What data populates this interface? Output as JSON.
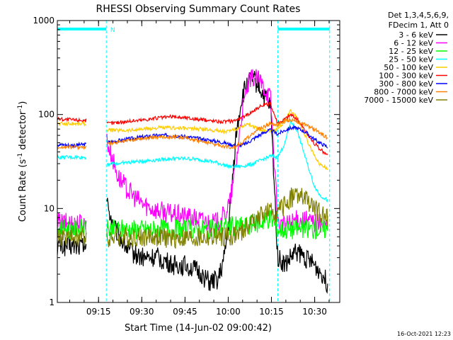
{
  "chart_data": {
    "type": "line",
    "title": "RHESSI Observing Summary Count Rates",
    "xlabel": "Start Time (14-Jun-02 09:00:42)",
    "ylabel_main": "Count Rate (s",
    "ylabel_sup1": "-1",
    "ylabel_mid": " detector",
    "ylabel_sup2": "-1",
    "ylabel_end": ")",
    "y_scale": "log",
    "ylim": [
      1,
      1000
    ],
    "xlim_minutes": [
      0,
      98
    ],
    "x_ticks": [
      {
        "label": "09:15",
        "minute": 14.3
      },
      {
        "label": "09:30",
        "minute": 29.3
      },
      {
        "label": "09:45",
        "minute": 44.3
      },
      {
        "label": "10:00",
        "minute": 59.3
      },
      {
        "label": "10:15",
        "minute": 74.3
      },
      {
        "label": "10:30",
        "minute": 89.3
      }
    ],
    "y_ticks": [
      {
        "label": "1",
        "value": 1
      },
      {
        "label": "10",
        "value": 10
      },
      {
        "label": "100",
        "value": 100
      },
      {
        "label": "1000",
        "value": 1000
      }
    ],
    "legend_header": [
      "Det 1,3,4,5,6,9,",
      "FDecim 1, Att 0"
    ],
    "legend_position": "right",
    "night_marker": "N",
    "timestamp": "16-Oct-2021 12:23",
    "night_intervals": [
      [
        0,
        17
      ],
      [
        76.5,
        94.5
      ]
    ],
    "data_gaps": [
      [
        10,
        17
      ]
    ],
    "series": [
      {
        "name": "3 - 6 keV",
        "color": "#000000",
        "x": [
          0,
          5,
          9.5,
          17,
          20,
          25,
          30,
          35,
          40,
          45,
          50,
          53,
          56,
          58,
          60,
          62,
          64,
          66,
          68,
          70,
          72,
          74,
          76.5,
          79,
          81,
          83,
          86,
          89,
          92,
          94
        ],
        "y": [
          4,
          4,
          4,
          12,
          6,
          3.5,
          3,
          3,
          2.5,
          2.5,
          2,
          1.6,
          1.8,
          3,
          10,
          60,
          150,
          220,
          240,
          200,
          150,
          120,
          3,
          2.5,
          3,
          3.5,
          3,
          2.5,
          2,
          1.5
        ]
      },
      {
        "name": "6 - 12 keV",
        "color": "#ff00ff",
        "x": [
          0,
          5,
          9.5,
          17,
          19,
          21,
          23,
          25,
          27,
          30,
          33,
          35,
          38,
          42,
          46,
          50,
          54,
          56,
          58,
          60,
          62,
          64,
          66,
          68,
          70,
          72,
          74,
          76.5,
          79,
          82,
          85,
          88,
          91,
          94
        ],
        "y": [
          7,
          7,
          7,
          55,
          35,
          22,
          18,
          15,
          13,
          11,
          10,
          9.5,
          9,
          8.5,
          8,
          7.5,
          7,
          7.2,
          8.5,
          12,
          30,
          100,
          200,
          250,
          230,
          190,
          150,
          7,
          6.5,
          7.5,
          7.5,
          7.2,
          7,
          6.5
        ]
      },
      {
        "name": "12 - 25 keV",
        "color": "#00ff00",
        "x": [
          0,
          5,
          9.5,
          17,
          20,
          25,
          30,
          35,
          40,
          45,
          50,
          55,
          60,
          65,
          70,
          74,
          76.5,
          79,
          82,
          85,
          88,
          91,
          94
        ],
        "y": [
          6,
          6,
          6,
          6,
          6,
          6,
          6,
          6,
          6,
          6,
          6,
          6,
          6.5,
          6.5,
          7,
          8,
          6,
          6,
          6,
          6,
          6,
          6,
          6
        ]
      },
      {
        "name": "25 - 50 keV",
        "color": "#00ffff",
        "x": [
          0,
          5,
          9.5,
          17,
          20,
          25,
          30,
          35,
          40,
          45,
          50,
          55,
          58,
          60,
          64,
          68,
          70,
          72,
          74,
          76.5,
          79,
          81,
          83,
          85,
          87,
          89,
          91,
          94
        ],
        "y": [
          35,
          35,
          35,
          30,
          30,
          31,
          32,
          33,
          34,
          34,
          33,
          31,
          29,
          28,
          28,
          30,
          32,
          34,
          36,
          35,
          50,
          85,
          70,
          45,
          28,
          18,
          14,
          12
        ]
      },
      {
        "name": "50 - 100 keV",
        "color": "#ffcc00",
        "x": [
          0,
          5,
          9.5,
          17,
          20,
          25,
          30,
          35,
          40,
          45,
          50,
          55,
          58,
          60,
          62,
          64,
          66,
          68,
          70,
          72,
          74,
          76.5,
          79,
          81,
          83,
          85,
          87,
          89,
          91,
          94
        ],
        "y": [
          80,
          80,
          80,
          68,
          68,
          68,
          70,
          72,
          72,
          71,
          70,
          68,
          66,
          66,
          70,
          75,
          80,
          75,
          70,
          68,
          66,
          70,
          85,
          110,
          95,
          70,
          50,
          38,
          30,
          26
        ]
      },
      {
        "name": "100 - 300 keV",
        "color": "#ff0000",
        "x": [
          0,
          5,
          9.5,
          17,
          20,
          25,
          30,
          35,
          40,
          45,
          50,
          55,
          58,
          60,
          62,
          64,
          66,
          68,
          70,
          72,
          74,
          76.5,
          79,
          81,
          83,
          85,
          87,
          89,
          91,
          94
        ],
        "y": [
          90,
          88,
          87,
          80,
          82,
          85,
          88,
          92,
          95,
          92,
          88,
          85,
          84,
          85,
          88,
          92,
          100,
          110,
          120,
          125,
          130,
          80,
          90,
          100,
          90,
          75,
          60,
          50,
          43,
          36
        ]
      },
      {
        "name": "300 - 800 keV",
        "color": "#0000ff",
        "x": [
          0,
          5,
          9.5,
          17,
          20,
          25,
          30,
          35,
          40,
          45,
          50,
          55,
          58,
          60,
          62,
          64,
          66,
          68,
          70,
          72,
          74,
          76.5,
          79,
          81,
          83,
          85,
          87,
          89,
          91,
          94
        ],
        "y": [
          48,
          47,
          48,
          50,
          52,
          55,
          58,
          60,
          60,
          58,
          55,
          52,
          50,
          48,
          47,
          47,
          50,
          55,
          60,
          65,
          68,
          62,
          68,
          72,
          72,
          68,
          62,
          55,
          50,
          45
        ]
      },
      {
        "name": "800 - 7000 keV",
        "color": "#ff8000",
        "x": [
          0,
          5,
          9.5,
          17,
          20,
          25,
          30,
          35,
          40,
          45,
          50,
          55,
          58,
          60,
          62,
          64,
          66,
          68,
          70,
          72,
          74,
          76.5,
          79,
          81,
          83,
          85,
          87,
          89,
          91,
          94
        ],
        "y": [
          45,
          45,
          45,
          48,
          50,
          53,
          56,
          58,
          58,
          56,
          52,
          48,
          46,
          45,
          46,
          50,
          56,
          64,
          70,
          75,
          80,
          78,
          85,
          88,
          85,
          80,
          75,
          70,
          65,
          55
        ]
      },
      {
        "name": "7000 - 15000 keV",
        "color": "#808000",
        "x": [
          0,
          5,
          9.5,
          17,
          20,
          25,
          30,
          35,
          40,
          45,
          50,
          55,
          60,
          64,
          66,
          68,
          70,
          72,
          74,
          76.5,
          79,
          81,
          83,
          85,
          87,
          89,
          91,
          94
        ],
        "y": [
          5,
          5,
          5,
          5,
          5,
          5,
          5,
          5,
          4.8,
          4.8,
          4.8,
          5,
          5,
          5.5,
          6.5,
          7.5,
          8,
          9,
          9,
          9,
          11,
          13,
          14,
          13,
          12,
          10,
          9,
          8
        ]
      }
    ]
  }
}
